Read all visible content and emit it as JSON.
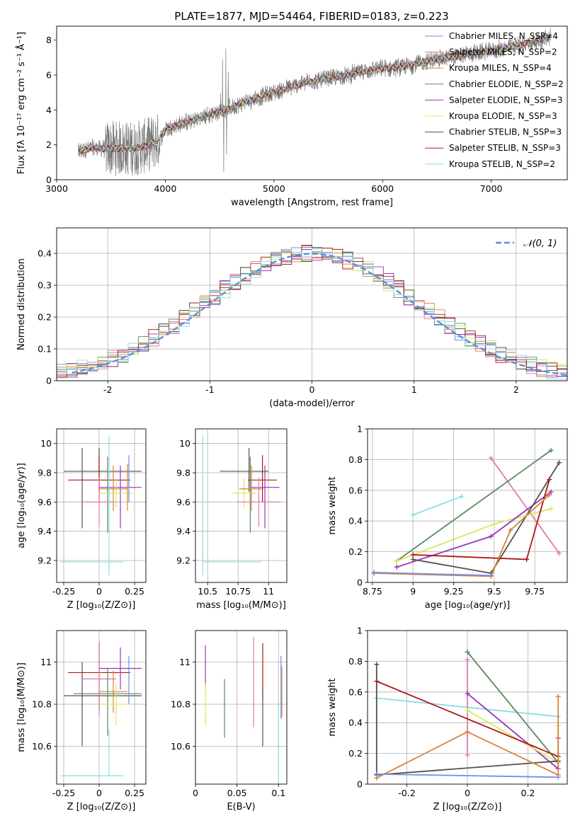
{
  "figure": {
    "title": "PLATE=1877, MJD=54464, FIBERID=0183, z=0.223"
  },
  "chart_data": [
    {
      "id": "spectrum",
      "type": "line",
      "xlabel": "wavelength [Angstrom, rest frame]",
      "ylabel": "Flux [fλ 10⁻¹⁷ erg cm⁻² s⁻¹ Å⁻¹]",
      "xlim": [
        3000,
        7700
      ],
      "ylim": [
        0,
        8.8
      ],
      "xticks": [
        3000,
        4000,
        5000,
        6000,
        7000
      ],
      "yticks": [
        0,
        2,
        4,
        6,
        8
      ],
      "legend_position": "top-right",
      "continuum_anchors": {
        "x": [
          3200,
          3300,
          3500,
          3700,
          3800,
          3950,
          4000,
          4200,
          4500,
          4800,
          5000,
          5300,
          5600,
          5900,
          6200,
          6500,
          6800,
          7100,
          7400,
          7550
        ],
        "y": [
          1.6,
          1.8,
          1.8,
          1.8,
          1.9,
          2.3,
          2.9,
          3.3,
          3.9,
          4.6,
          5.0,
          5.6,
          5.9,
          6.3,
          6.5,
          6.9,
          7.2,
          7.5,
          7.9,
          8.2
        ]
      },
      "series": [
        {
          "name": "Chabrier MILES, N_SSP=4",
          "color": "#6d8fe6"
        },
        {
          "name": "Salpeter MILES, N_SSP=2",
          "color": "#e07aa8"
        },
        {
          "name": "Kroupa MILES, N_SSP=4",
          "color": "#d9823b"
        },
        {
          "name": "Chabrier ELODIE, N_SSP=2",
          "color": "#5a8a5e"
        },
        {
          "name": "Salpeter ELODIE, N_SSP=3",
          "color": "#9933bb"
        },
        {
          "name": "Kroupa ELODIE, N_SSP=3",
          "color": "#d6e85a"
        },
        {
          "name": "Chabrier STELIB, N_SSP=3",
          "color": "#505050"
        },
        {
          "name": "Salpeter STELIB, N_SSP=3",
          "color": "#b01818"
        },
        {
          "name": "Kroupa STELIB, N_SSP=2",
          "color": "#88dde6"
        }
      ]
    },
    {
      "id": "residuals",
      "type": "line",
      "xlabel": "(data-model)/error",
      "ylabel": "Normed distribution",
      "xlim": [
        -2.5,
        2.5
      ],
      "ylim": [
        0,
        0.48
      ],
      "xticks": [
        -2,
        -1,
        0,
        1,
        2
      ],
      "yticks": [
        0.0,
        0.1,
        0.2,
        0.3,
        0.4
      ],
      "grid": true,
      "legend_position": "top-right",
      "legend": "𝒩(0, 1)",
      "reference_curve": {
        "name": "normal",
        "mean": 0,
        "sigma": 1,
        "color": "#5b8fd9"
      }
    },
    {
      "id": "age-vs-Z",
      "type": "scatter",
      "xlabel": "Z [log₁₀(Z/Z⊙)]",
      "ylabel": "age  [log₁₀(age/yr)]",
      "xlim": [
        -0.3,
        0.33
      ],
      "ylim": [
        9.05,
        10.1
      ],
      "xticks": [
        -0.25,
        0.0,
        0.25
      ],
      "yticks": [
        9.2,
        9.4,
        9.6,
        9.8,
        10.0
      ],
      "grid": true,
      "points": [
        {
          "color": "#505050",
          "x": 0.0,
          "xerr": [
            0.25,
            0.3
          ],
          "y": 9.81,
          "yerr": [
            0.14,
            0.16
          ]
        },
        {
          "color": "#505050",
          "x": -0.12,
          "xerr": [
            0,
            0
          ],
          "y": 9.7,
          "yerr": [
            0.28,
            0.27
          ]
        },
        {
          "color": "#b01818",
          "x": 0.0,
          "xerr": [
            0.22,
            0.22
          ],
          "y": 9.75,
          "yerr": [
            0.15,
            0.17
          ]
        },
        {
          "color": "#9933bb",
          "x": 0.15,
          "xerr": [
            0.15,
            0.15
          ],
          "y": 9.7,
          "yerr": [
            0.28,
            0.15
          ]
        },
        {
          "color": "#d9823b",
          "x": 0.1,
          "xerr": [
            0.1,
            0.1
          ],
          "y": 9.69,
          "yerr": [
            0.15,
            0.16
          ]
        },
        {
          "color": "#5a8a5e",
          "x": 0.06,
          "xerr": [
            0,
            0
          ],
          "y": 9.65,
          "yerr": [
            0.26,
            0.26
          ]
        },
        {
          "color": "#d6e85a",
          "x": 0.12,
          "xerr": [
            0.12,
            0.12
          ],
          "y": 9.66,
          "yerr": [
            0.1,
            0.1
          ]
        },
        {
          "color": "#e07aa8",
          "x": 0.0,
          "xerr": [
            0.12,
            0.12
          ],
          "y": 9.6,
          "yerr": [
            0.17,
            0.17
          ]
        },
        {
          "color": "#6d8fe6",
          "x": 0.21,
          "xerr": [
            0,
            0
          ],
          "y": 9.78,
          "yerr": [
            0.18,
            0.14
          ]
        },
        {
          "color": "#d9823b",
          "x": 0.2,
          "xerr": [
            0,
            0
          ],
          "y": 9.72,
          "yerr": [
            0.18,
            0.14
          ]
        },
        {
          "color": "#88dde6",
          "x": 0.07,
          "xerr": [
            0,
            0
          ],
          "y": 9.6,
          "yerr": [
            0.5,
            0.45
          ]
        },
        {
          "color": "#88dde6",
          "x": -0.05,
          "xerr": [
            0.22,
            0.22
          ],
          "y": 9.19,
          "yerr": [
            0,
            0
          ]
        }
      ]
    },
    {
      "id": "age-vs-mass",
      "type": "scatter",
      "xlabel": "mass [log₁₀(M/M⊙)]",
      "ylabel": "",
      "xlim": [
        10.4,
        11.15
      ],
      "ylim": [
        9.05,
        10.1
      ],
      "xticks": [
        10.5,
        10.75,
        11.0
      ],
      "yticks": [
        9.2,
        9.4,
        9.6,
        9.8,
        10.0
      ],
      "grid": true,
      "points": [
        {
          "color": "#505050",
          "x": 10.84,
          "xerr": [
            0.24,
            0.16
          ],
          "y": 9.81,
          "yerr": [
            0.14,
            0.16
          ]
        },
        {
          "color": "#b01818",
          "x": 10.95,
          "xerr": [
            0.12,
            0.12
          ],
          "y": 9.75,
          "yerr": [
            0.15,
            0.17
          ]
        },
        {
          "color": "#9933bb",
          "x": 10.97,
          "xerr": [
            0.12,
            0.12
          ],
          "y": 9.7,
          "yerr": [
            0.28,
            0.15
          ]
        },
        {
          "color": "#5a8a5e",
          "x": 10.85,
          "xerr": [
            0,
            0
          ],
          "y": 9.65,
          "yerr": [
            0.26,
            0.26
          ]
        },
        {
          "color": "#d6e85a",
          "x": 10.8,
          "xerr": [
            0.1,
            0.1
          ],
          "y": 9.66,
          "yerr": [
            0.1,
            0.1
          ]
        },
        {
          "color": "#e07aa8",
          "x": 10.92,
          "xerr": [
            0.18,
            0.18
          ],
          "y": 9.6,
          "yerr": [
            0.17,
            0.17
          ]
        },
        {
          "color": "#d9823b",
          "x": 10.86,
          "xerr": [
            0.1,
            0.1
          ],
          "y": 9.69,
          "yerr": [
            0.15,
            0.16
          ]
        },
        {
          "color": "#88dde6",
          "x": 10.46,
          "xerr": [
            0,
            0
          ],
          "y": 9.6,
          "yerr": [
            0.5,
            0.45
          ]
        },
        {
          "color": "#88dde6",
          "x": 10.7,
          "xerr": [
            0.24,
            0.24
          ],
          "y": 9.19,
          "yerr": [
            0,
            0
          ]
        }
      ]
    },
    {
      "id": "weight-vs-age",
      "type": "line",
      "xlabel": "age  [log₁₀(age/yr)]",
      "ylabel": "mass weight",
      "xlim": [
        8.72,
        9.95
      ],
      "ylim": [
        0,
        1.0
      ],
      "xticks": [
        8.75,
        9.0,
        9.25,
        9.5,
        9.75
      ],
      "yticks": [
        0.0,
        0.2,
        0.4,
        0.6,
        0.8,
        1.0
      ],
      "grid": true,
      "series": [
        {
          "color": "#88dde6",
          "x": [
            9.0,
            9.3
          ],
          "y": [
            0.44,
            0.56
          ]
        },
        {
          "color": "#e07aa8",
          "x": [
            9.48,
            9.9
          ],
          "y": [
            0.81,
            0.19
          ]
        },
        {
          "color": "#5a8a5e",
          "x": [
            8.9,
            9.85
          ],
          "y": [
            0.14,
            0.86
          ]
        },
        {
          "color": "#d6e85a",
          "x": [
            8.9,
            9.5,
            9.85
          ],
          "y": [
            0.14,
            0.38,
            0.48
          ]
        },
        {
          "color": "#9933bb",
          "x": [
            8.9,
            9.48,
            9.85
          ],
          "y": [
            0.1,
            0.3,
            0.59
          ]
        },
        {
          "color": "#505050",
          "x": [
            9.0,
            9.48,
            9.9
          ],
          "y": [
            0.15,
            0.06,
            0.78
          ]
        },
        {
          "color": "#b01818",
          "x": [
            9.0,
            9.7,
            9.84
          ],
          "y": [
            0.18,
            0.15,
            0.67
          ]
        },
        {
          "color": "#d9823b",
          "x": [
            8.76,
            9.48,
            9.6,
            9.84
          ],
          "y": [
            0.06,
            0.04,
            0.34,
            0.57
          ]
        },
        {
          "color": "#6d8fe6",
          "x": [
            8.76,
            9.48
          ],
          "y": [
            0.065,
            0.045
          ]
        }
      ]
    },
    {
      "id": "mass-vs-Z",
      "type": "scatter",
      "xlabel": "Z [log₁₀(Z/Z⊙)]",
      "ylabel": "mass [log₁₀(M/M⊙)]",
      "xlim": [
        -0.3,
        0.33
      ],
      "ylim": [
        10.42,
        11.15
      ],
      "xticks": [
        -0.25,
        0.0,
        0.25
      ],
      "yticks": [
        10.6,
        10.8,
        11.0
      ],
      "grid": true,
      "points": [
        {
          "color": "#505050",
          "x": -0.12,
          "xerr": [
            0,
            0
          ],
          "y": 10.84,
          "yerr": [
            0.24,
            0.16
          ]
        },
        {
          "color": "#505050",
          "x": 0.0,
          "xerr": [
            0.25,
            0.3
          ],
          "y": 10.84,
          "yerr": [
            0,
            0
          ]
        },
        {
          "color": "#b01818",
          "x": 0.0,
          "xerr": [
            0.22,
            0.22
          ],
          "y": 10.95,
          "yerr": [
            0.18,
            0.14
          ]
        },
        {
          "color": "#9933bb",
          "x": 0.15,
          "xerr": [
            0.15,
            0.15
          ],
          "y": 10.97,
          "yerr": [
            0.1,
            0.1
          ]
        },
        {
          "color": "#e07aa8",
          "x": 0.0,
          "xerr": [
            0.12,
            0.12
          ],
          "y": 10.92,
          "yerr": [
            0.18,
            0.18
          ]
        },
        {
          "color": "#d9823b",
          "x": 0.1,
          "xerr": [
            0.1,
            0.1
          ],
          "y": 10.86,
          "yerr": [
            0.1,
            0.1
          ]
        },
        {
          "color": "#5a8a5e",
          "x": 0.06,
          "xerr": [
            0.24,
            0.24
          ],
          "y": 10.85,
          "yerr": [
            0.2,
            0.12
          ]
        },
        {
          "color": "#d6e85a",
          "x": 0.12,
          "xerr": [
            0.12,
            0.12
          ],
          "y": 10.8,
          "yerr": [
            0.1,
            0.1
          ]
        },
        {
          "color": "#6d8fe6",
          "x": 0.21,
          "xerr": [
            0,
            0
          ],
          "y": 10.98,
          "yerr": [
            0.18,
            0.05
          ]
        },
        {
          "color": "#88dde6",
          "x": -0.05,
          "xerr": [
            0.22,
            0.22
          ],
          "y": 10.46,
          "yerr": [
            0,
            0
          ]
        },
        {
          "color": "#88dde6",
          "x": 0.07,
          "xerr": [
            0,
            0
          ],
          "y": 10.46,
          "yerr": [
            0,
            0.22
          ]
        }
      ]
    },
    {
      "id": "mass-vs-ebv",
      "type": "scatter",
      "xlabel": "E(B-V)",
      "ylabel": "",
      "xlim": [
        0.0,
        0.11
      ],
      "ylim": [
        10.42,
        11.15
      ],
      "xticks": [
        0.0,
        0.05,
        0.1
      ],
      "yticks": [
        10.6,
        10.8,
        11.0
      ],
      "grid": true,
      "points": [
        {
          "color": "#9933bb",
          "x": 0.012,
          "xerr": [
            0,
            0
          ],
          "y": 10.98,
          "yerr": [
            0.1,
            0.1
          ]
        },
        {
          "color": "#d6e85a",
          "x": 0.012,
          "xerr": [
            0,
            0
          ],
          "y": 10.8,
          "yerr": [
            0.1,
            0.1
          ]
        },
        {
          "color": "#5a8a5e",
          "x": 0.035,
          "xerr": [
            0,
            0
          ],
          "y": 10.78,
          "yerr": [
            0.14,
            0.14
          ]
        },
        {
          "color": "#e07aa8",
          "x": 0.07,
          "xerr": [
            0,
            0
          ],
          "y": 10.91,
          "yerr": [
            0.22,
            0.21
          ]
        },
        {
          "color": "#b01818",
          "x": 0.081,
          "xerr": [
            0,
            0
          ],
          "y": 10.92,
          "yerr": [
            0.1,
            0.17
          ]
        },
        {
          "color": "#505050",
          "x": 0.081,
          "xerr": [
            0,
            0
          ],
          "y": 10.74,
          "yerr": [
            0.14,
            0.12
          ]
        },
        {
          "color": "#6d8fe6",
          "x": 0.103,
          "xerr": [
            0,
            0
          ],
          "y": 10.88,
          "yerr": [
            0.15,
            0.15
          ]
        },
        {
          "color": "#d9823b",
          "x": 0.104,
          "xerr": [
            0,
            0
          ],
          "y": 10.86,
          "yerr": [
            0.12,
            0.12
          ]
        },
        {
          "color": "#88dde6",
          "x": 0.1,
          "xerr": [
            0,
            0
          ],
          "y": 10.62,
          "yerr": [
            0.2,
            0.2
          ]
        }
      ]
    },
    {
      "id": "weight-vs-Z",
      "type": "line",
      "xlabel": "Z [log₁₀(Z/Z⊙)]",
      "ylabel": "mass weight",
      "xlim": [
        -0.33,
        0.33
      ],
      "ylim": [
        0,
        1.0
      ],
      "xticks": [
        -0.2,
        0.0,
        0.2
      ],
      "yticks": [
        0.0,
        0.2,
        0.4,
        0.6,
        0.8,
        1.0
      ],
      "grid": true,
      "series": [
        {
          "color": "#88dde6",
          "x": [
            -0.3,
            0.3
          ],
          "y": [
            0.56,
            0.44
          ]
        },
        {
          "color": "#e07aa8",
          "x": [
            0.0,
            0.0
          ],
          "y": [
            0.81,
            0.19
          ]
        },
        {
          "color": "#5a8a5e",
          "x": [
            0.0,
            0.3
          ],
          "y": [
            0.86,
            0.14
          ]
        },
        {
          "color": "#9933bb",
          "x": [
            0.0,
            0.3,
            0.3
          ],
          "y": [
            0.59,
            0.1,
            0.3
          ]
        },
        {
          "color": "#d6e85a",
          "x": [
            0.0,
            0.3,
            0.3
          ],
          "y": [
            0.48,
            0.14,
            0.38
          ]
        },
        {
          "color": "#505050",
          "x": [
            -0.3,
            -0.3,
            0.3
          ],
          "y": [
            0.78,
            0.06,
            0.15
          ]
        },
        {
          "color": "#b01818",
          "x": [
            -0.3,
            0.3
          ],
          "y": [
            0.67,
            0.18
          ]
        },
        {
          "color": "#d9823b",
          "x": [
            -0.3,
            0.0,
            0.3,
            0.3
          ],
          "y": [
            0.04,
            0.34,
            0.06,
            0.57
          ]
        },
        {
          "color": "#6d8fe6",
          "x": [
            -0.3,
            0.3
          ],
          "y": [
            0.065,
            0.045
          ]
        }
      ]
    }
  ]
}
